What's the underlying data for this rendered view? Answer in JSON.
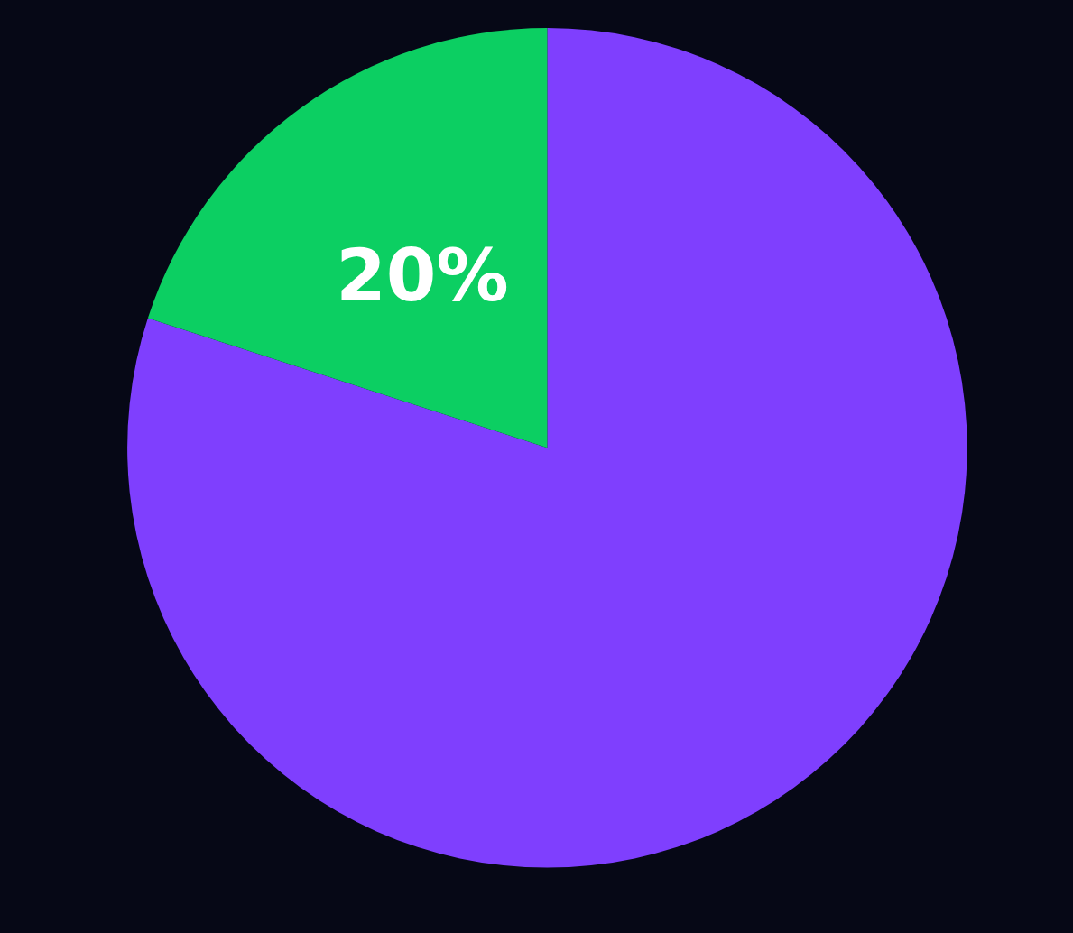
{
  "chart_data": {
    "type": "pie",
    "categories": [
      null,
      null
    ],
    "values": [
      80,
      20
    ],
    "colors": [
      "#7f3ffe",
      "#0ccf62"
    ],
    "value_labels": [
      null,
      "20%"
    ]
  }
}
